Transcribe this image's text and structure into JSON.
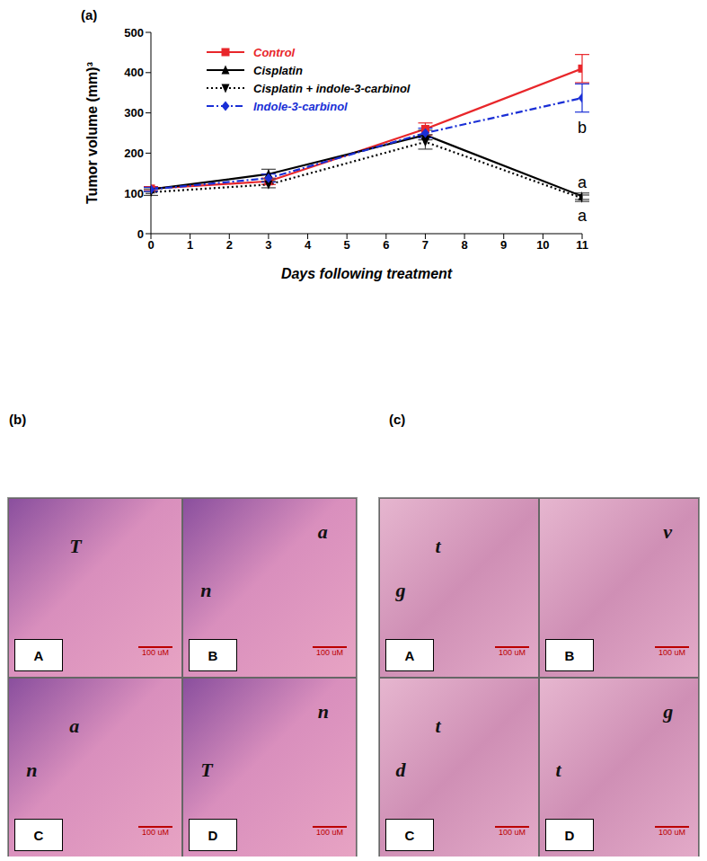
{
  "chart_data": {
    "type": "line",
    "x_label": "Days following treatment",
    "y_label": "Tumor volume (mm)³",
    "x": [
      0,
      3,
      7,
      11
    ],
    "xlim": [
      0,
      11
    ],
    "xticks": [
      0,
      1,
      2,
      3,
      4,
      5,
      6,
      7,
      8,
      9,
      10,
      11
    ],
    "ylim": [
      0,
      500
    ],
    "yticks": [
      0,
      100,
      200,
      300,
      400,
      500
    ],
    "grid": false,
    "legend": "upper left",
    "series": [
      {
        "name": "Control",
        "color": "#e8262a",
        "marker": "square",
        "line_style": "solid",
        "values": [
          112,
          130,
          260,
          410
        ],
        "errors": [
          5,
          8,
          15,
          35
        ]
      },
      {
        "name": "Cisplatin",
        "color": "#000000",
        "marker": "triangle",
        "line_style": "solid",
        "values": [
          110,
          148,
          245,
          93
        ],
        "errors": [
          5,
          12,
          12,
          8
        ]
      },
      {
        "name": "Cisplatin + indole-3-carbinol",
        "color": "#000000",
        "marker": "triangle-down",
        "line_style": "dotted",
        "values": [
          103,
          122,
          228,
          88
        ],
        "errors": [
          8,
          8,
          18,
          8
        ]
      },
      {
        "name": "Indole-3-carbinol",
        "color": "#1a2fd6",
        "marker": "diamond",
        "line_style": "dashdot",
        "values": [
          110,
          138,
          250,
          337
        ],
        "errors": [
          5,
          10,
          12,
          35
        ]
      }
    ],
    "annotations": [
      {
        "text": "b",
        "x": 11,
        "y": 265
      },
      {
        "text": "a",
        "x": 11,
        "y": 128
      },
      {
        "text": "a",
        "x": 11,
        "y": 45
      }
    ]
  },
  "figure": {
    "panel_labels": [
      "(a)",
      "(b)",
      "(c)"
    ],
    "histology": [
      {
        "panels": [
          {
            "letter": "A",
            "marks": [
              "T"
            ],
            "scale": "100 uM"
          },
          {
            "letter": "B",
            "marks": [
              "a",
              "n"
            ],
            "scale": "100 uM"
          },
          {
            "letter": "C",
            "marks": [
              "a",
              "n"
            ],
            "scale": "100 uM"
          },
          {
            "letter": "D",
            "marks": [
              "n",
              "T"
            ],
            "scale": "100 uM"
          }
        ]
      },
      {
        "panels": [
          {
            "letter": "A",
            "marks": [
              "t",
              "g"
            ],
            "scale": "100 uM"
          },
          {
            "letter": "B",
            "marks": [
              "v"
            ],
            "scale": "100 uM"
          },
          {
            "letter": "C",
            "marks": [
              "t",
              "d"
            ],
            "scale": "100 uM"
          },
          {
            "letter": "D",
            "marks": [
              "g",
              "t"
            ],
            "scale": "100 uM"
          }
        ]
      }
    ]
  }
}
